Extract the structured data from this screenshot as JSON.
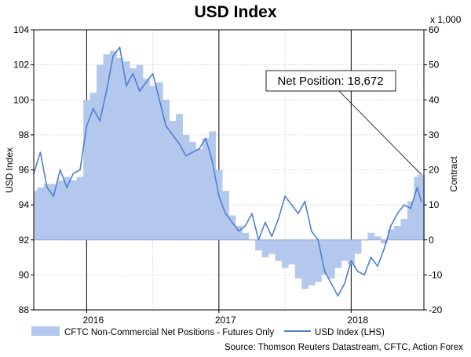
{
  "chart_data": {
    "type": "line",
    "title": "USD Index",
    "ylabel": "USD Index",
    "y2label": "Contract",
    "y2unit": "x 1,000",
    "ylim": [
      88,
      104
    ],
    "y2lim": [
      -20,
      60
    ],
    "yticks": [
      88,
      90,
      92,
      94,
      96,
      98,
      100,
      102,
      104
    ],
    "y2ticks": [
      -20,
      -10,
      0,
      10,
      20,
      30,
      40,
      50,
      60
    ],
    "xlim": [
      2015.6,
      2018.55
    ],
    "xticks": [
      {
        "label": "2016",
        "pos": 2016.0
      },
      {
        "label": "2017",
        "pos": 2017.0
      },
      {
        "label": "2018",
        "pos": 2018.0
      }
    ],
    "year_starts": [
      2016.0,
      2017.0,
      2018.0
    ],
    "annotation": {
      "text": "Net Position: 18,672",
      "x": 2018.53,
      "y2": 18.672
    },
    "series": [
      {
        "name": "CFTC Non-Commercial Net Positions - Futures Only",
        "axis": "right",
        "kind": "area",
        "color": "#b4c8ee",
        "x": [
          2015.6,
          2015.65,
          2015.7,
          2015.75,
          2015.8,
          2015.85,
          2015.9,
          2015.95,
          2016.0,
          2016.05,
          2016.1,
          2016.15,
          2016.2,
          2016.25,
          2016.3,
          2016.35,
          2016.4,
          2016.45,
          2016.5,
          2016.55,
          2016.6,
          2016.65,
          2016.7,
          2016.75,
          2016.8,
          2016.85,
          2016.9,
          2016.95,
          2017.0,
          2017.05,
          2017.1,
          2017.15,
          2017.2,
          2017.25,
          2017.3,
          2017.35,
          2017.4,
          2017.45,
          2017.5,
          2017.55,
          2017.6,
          2017.65,
          2017.7,
          2017.75,
          2017.8,
          2017.85,
          2017.9,
          2017.95,
          2018.0,
          2018.05,
          2018.1,
          2018.15,
          2018.2,
          2018.25,
          2018.3,
          2018.35,
          2018.4,
          2018.45,
          2018.5,
          2018.53
        ],
        "values": [
          14,
          15,
          16,
          16,
          17,
          18,
          17,
          18,
          40,
          42,
          50,
          53,
          54,
          52,
          51,
          49,
          50,
          46,
          44,
          45,
          40,
          34,
          36,
          30,
          28,
          26,
          29,
          31,
          20,
          14,
          7,
          4,
          2,
          0,
          -3,
          -5,
          -4,
          -6,
          -8,
          -7,
          -11,
          -14,
          -13,
          -12,
          -10,
          -11,
          -8,
          -6,
          -7,
          -4,
          0,
          2,
          1,
          -1,
          3,
          4,
          6,
          11,
          18,
          18.672
        ]
      },
      {
        "name": "USD Index (LHS)",
        "axis": "left",
        "kind": "line",
        "color": "#4f7fd1",
        "x": [
          2015.6,
          2015.65,
          2015.7,
          2015.75,
          2015.8,
          2015.85,
          2015.9,
          2015.95,
          2016.0,
          2016.05,
          2016.1,
          2016.15,
          2016.2,
          2016.25,
          2016.3,
          2016.35,
          2016.4,
          2016.45,
          2016.5,
          2016.55,
          2016.6,
          2016.65,
          2016.7,
          2016.75,
          2016.8,
          2016.85,
          2016.9,
          2016.95,
          2017.0,
          2017.05,
          2017.1,
          2017.15,
          2017.2,
          2017.25,
          2017.3,
          2017.35,
          2017.4,
          2017.45,
          2017.5,
          2017.55,
          2017.6,
          2017.65,
          2017.7,
          2017.75,
          2017.8,
          2017.85,
          2017.9,
          2017.95,
          2018.0,
          2018.05,
          2018.1,
          2018.15,
          2018.2,
          2018.25,
          2018.3,
          2018.35,
          2018.4,
          2018.45,
          2018.5,
          2018.53
        ],
        "values": [
          95.8,
          97.0,
          95.0,
          94.5,
          96.0,
          95.0,
          95.8,
          96.0,
          98.5,
          99.5,
          98.8,
          100.5,
          102.5,
          103.0,
          100.8,
          101.5,
          100.5,
          101.0,
          101.5,
          100.0,
          98.5,
          98.0,
          97.5,
          96.8,
          97.0,
          97.2,
          97.8,
          96.5,
          94.5,
          93.5,
          93.0,
          92.5,
          92.8,
          93.5,
          92.0,
          93.0,
          92.2,
          93.2,
          94.5,
          94.0,
          93.5,
          94.2,
          92.5,
          92.0,
          90.2,
          89.5,
          88.8,
          89.5,
          90.8,
          90.2,
          90.0,
          91.0,
          90.5,
          91.5,
          92.8,
          93.5,
          94.0,
          93.8,
          95.0,
          94.2
        ]
      }
    ]
  },
  "source": "Source: Thomson Reuters Datastream, CFTC, Action Forex"
}
